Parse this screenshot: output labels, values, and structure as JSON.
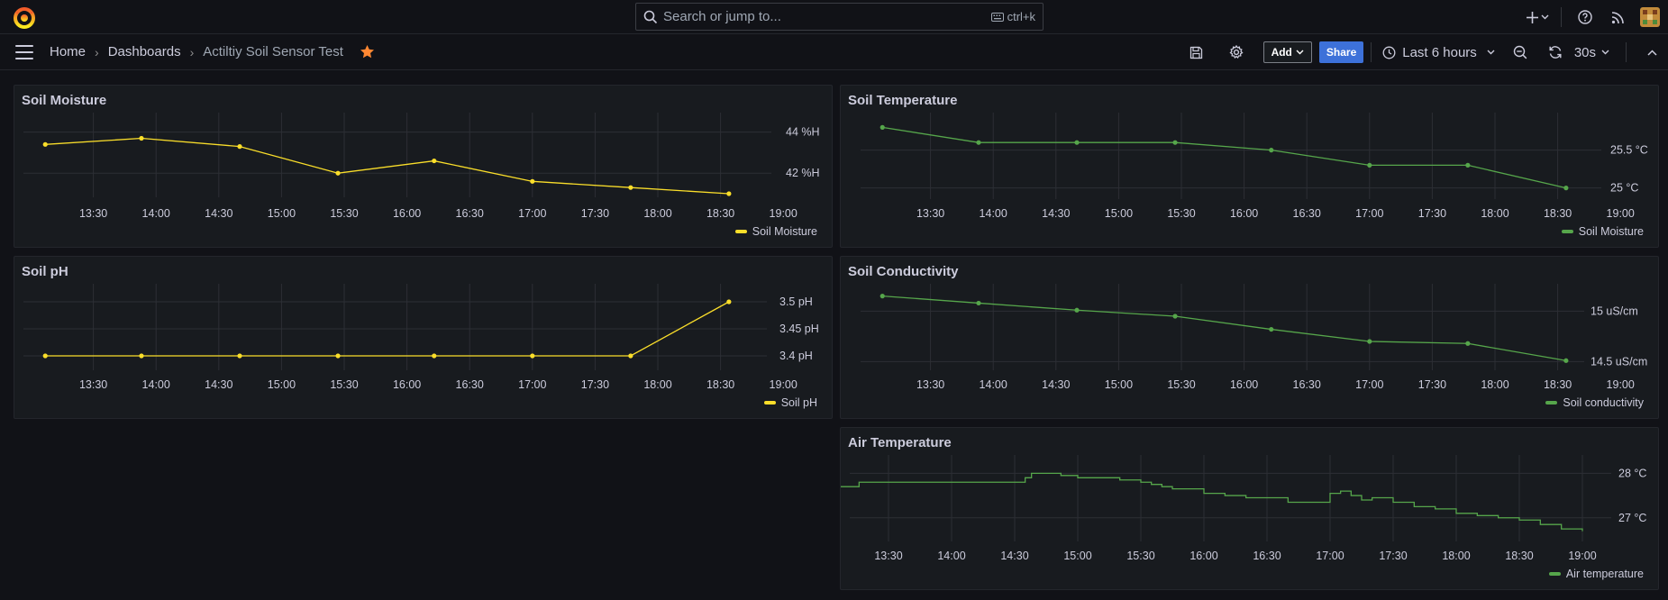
{
  "search": {
    "placeholder": "Search or jump to...",
    "shortcut": "ctrl+k"
  },
  "breadcrumb": {
    "home": "Home",
    "dashboards": "Dashboards",
    "current": "Actiltiy Soil Sensor Test"
  },
  "toolbar": {
    "add_label": "Add",
    "share_label": "Share",
    "time_range": "Last 6 hours",
    "refresh_interval": "30s"
  },
  "colors": {
    "yellow": "#fade2a",
    "green": "#56a64b",
    "accent": "#3d71d9"
  },
  "panels": [
    {
      "title": "Soil Moisture",
      "legend": "Soil Moisture"
    },
    {
      "title": "Soil Temperature",
      "legend": "Soil Moisture"
    },
    {
      "title": "Soil pH",
      "legend": "Soil pH"
    },
    {
      "title": "Soil Conductivity",
      "legend": "Soil conductivity"
    },
    {
      "title": "Air Temperature",
      "legend": "Air temperature"
    }
  ],
  "chart_data": [
    {
      "type": "line",
      "title": "Soil Moisture",
      "x_ticks": [
        "13:30",
        "14:00",
        "14:30",
        "15:00",
        "15:30",
        "16:00",
        "16:30",
        "17:00",
        "17:30",
        "18:00",
        "18:30",
        "19:00"
      ],
      "y_ticks": [
        {
          "value": 44,
          "label": "44 %H"
        },
        {
          "value": 42,
          "label": "42 %H"
        }
      ],
      "ylim": [
        41,
        44.6
      ],
      "series": [
        {
          "name": "Soil Moisture",
          "color": "yellow",
          "points": true,
          "x": [
            "13:07",
            "13:53",
            "14:40",
            "15:27",
            "16:13",
            "17:00",
            "17:47",
            "18:34"
          ],
          "y": [
            43.4,
            43.7,
            43.3,
            42.0,
            42.6,
            41.6,
            41.3,
            41.0
          ]
        }
      ]
    },
    {
      "type": "line",
      "title": "Soil Temperature",
      "x_ticks": [
        "13:30",
        "14:00",
        "14:30",
        "15:00",
        "15:30",
        "16:00",
        "16:30",
        "17:00",
        "17:30",
        "18:00",
        "18:30",
        "19:00"
      ],
      "y_ticks": [
        {
          "value": 25.5,
          "label": "25.5 °C"
        },
        {
          "value": 25,
          "label": "25 °C"
        }
      ],
      "ylim": [
        24.9,
        25.9
      ],
      "series": [
        {
          "name": "Soil Moisture",
          "color": "green",
          "points": true,
          "x": [
            "13:07",
            "13:53",
            "14:40",
            "15:27",
            "16:13",
            "17:00",
            "17:47",
            "18:34"
          ],
          "y": [
            25.8,
            25.6,
            25.6,
            25.6,
            25.5,
            25.3,
            25.3,
            25.0
          ]
        }
      ]
    },
    {
      "type": "line",
      "title": "Soil pH",
      "x_ticks": [
        "13:30",
        "14:00",
        "14:30",
        "15:00",
        "15:30",
        "16:00",
        "16:30",
        "17:00",
        "17:30",
        "18:00",
        "18:30",
        "19:00"
      ],
      "y_ticks": [
        {
          "value": 3.5,
          "label": "3.5 pH"
        },
        {
          "value": 3.45,
          "label": "3.45 pH"
        },
        {
          "value": 3.4,
          "label": "3.4 pH"
        }
      ],
      "ylim": [
        3.38,
        3.52
      ],
      "series": [
        {
          "name": "Soil pH",
          "color": "yellow",
          "points": true,
          "x": [
            "13:07",
            "13:53",
            "14:40",
            "15:27",
            "16:13",
            "17:00",
            "17:47",
            "18:34"
          ],
          "y": [
            3.4,
            3.4,
            3.4,
            3.4,
            3.4,
            3.4,
            3.4,
            3.5
          ]
        }
      ]
    },
    {
      "type": "line",
      "title": "Soil Conductivity",
      "x_ticks": [
        "13:30",
        "14:00",
        "14:30",
        "15:00",
        "15:30",
        "16:00",
        "16:30",
        "17:00",
        "17:30",
        "18:00",
        "18:30",
        "19:00"
      ],
      "y_ticks": [
        {
          "value": 15,
          "label": "15 uS/cm"
        },
        {
          "value": 14.5,
          "label": "14.5 uS/cm"
        }
      ],
      "ylim": [
        14.45,
        15.2
      ],
      "series": [
        {
          "name": "Soil conductivity",
          "color": "green",
          "points": true,
          "x": [
            "13:07",
            "13:53",
            "14:40",
            "15:27",
            "16:13",
            "17:00",
            "17:47",
            "18:34"
          ],
          "y": [
            15.15,
            15.08,
            15.01,
            14.95,
            14.82,
            14.7,
            14.68,
            14.51
          ]
        }
      ]
    },
    {
      "type": "line",
      "title": "Air Temperature",
      "x_ticks": [
        "13:30",
        "14:00",
        "14:30",
        "15:00",
        "15:30",
        "16:00",
        "16:30",
        "17:00",
        "17:30",
        "18:00",
        "18:30",
        "19:00"
      ],
      "y_ticks": [
        {
          "value": 28,
          "label": "28 °C"
        },
        {
          "value": 27,
          "label": "27 °C"
        }
      ],
      "ylim": [
        26.55,
        28.25
      ],
      "series": [
        {
          "name": "Air temperature",
          "color": "green",
          "points": false,
          "step": true,
          "x": [
            "13:00",
            "13:15",
            "13:16",
            "13:30",
            "14:00",
            "14:30",
            "14:35",
            "14:38",
            "14:45",
            "14:52",
            "15:00",
            "15:10",
            "15:20",
            "15:30",
            "15:35",
            "15:40",
            "15:45",
            "16:00",
            "16:10",
            "16:20",
            "16:30",
            "16:40",
            "16:50",
            "17:00",
            "17:05",
            "17:10",
            "17:15",
            "17:20",
            "17:30",
            "17:40",
            "17:50",
            "18:00",
            "18:10",
            "18:20",
            "18:30",
            "18:40",
            "18:50",
            "19:00"
          ],
          "y": [
            27.7,
            27.7,
            27.8,
            27.8,
            27.8,
            27.8,
            27.9,
            28.0,
            28.0,
            27.95,
            27.9,
            27.9,
            27.85,
            27.8,
            27.75,
            27.7,
            27.65,
            27.55,
            27.5,
            27.45,
            27.45,
            27.35,
            27.35,
            27.55,
            27.6,
            27.5,
            27.4,
            27.45,
            27.35,
            27.25,
            27.2,
            27.1,
            27.05,
            27.0,
            26.95,
            26.85,
            26.75,
            26.7
          ]
        }
      ]
    }
  ]
}
